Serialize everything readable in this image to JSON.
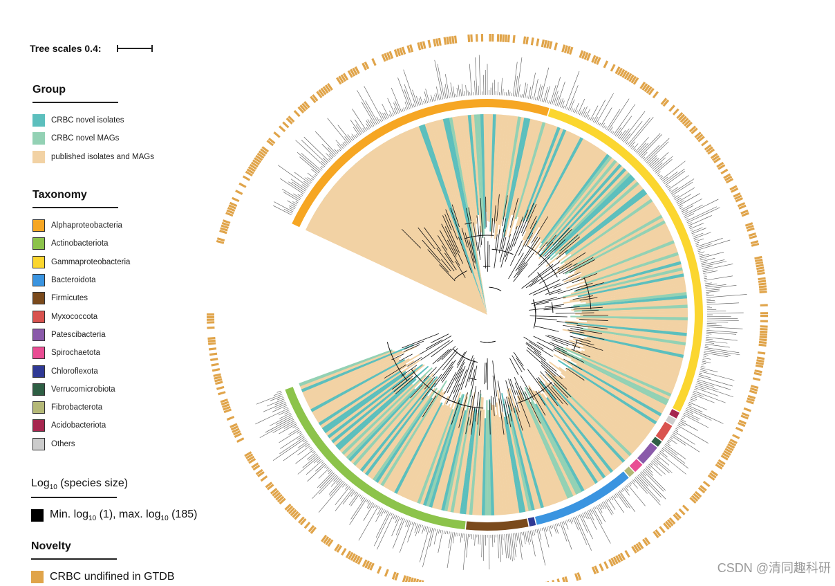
{
  "scale": {
    "label": "Tree scales 0.4:"
  },
  "group": {
    "title": "Group",
    "items": [
      {
        "label": "CRBC novel isolates",
        "color": "#5cbfbd"
      },
      {
        "label": "CRBC novel MAGs",
        "color": "#93d1b4"
      },
      {
        "label": "published isolates and MAGs",
        "color": "#f2d2a4"
      }
    ]
  },
  "taxonomy": {
    "title": "Taxonomy",
    "items": [
      {
        "label": "Alphaproteobacteria",
        "color": "#f6a623"
      },
      {
        "label": "Actinobacteriota",
        "color": "#8cc34b"
      },
      {
        "label": "Gammaproteobacteria",
        "color": "#fbd62f"
      },
      {
        "label": "Bacteroidota",
        "color": "#3a94e0"
      },
      {
        "label": "Firmicutes",
        "color": "#7a4a1c"
      },
      {
        "label": "Myxococcota",
        "color": "#d9534f"
      },
      {
        "label": "Patescibacteria",
        "color": "#8a5aaa"
      },
      {
        "label": "Spirochaetota",
        "color": "#e94d93"
      },
      {
        "label": "Chloroflexota",
        "color": "#2f3994"
      },
      {
        "label": "Verrucomicrobiota",
        "color": "#2e5f44"
      },
      {
        "label": "Fibrobacterota",
        "color": "#b4b877"
      },
      {
        "label": "Acidobacteriota",
        "color": "#a6264f"
      },
      {
        "label": "Others",
        "color": "#cccccc"
      }
    ]
  },
  "species_size": {
    "title_pre": "Log",
    "title_sub": "10",
    "title_post": " (species size)",
    "item": {
      "p1": "Min. log",
      "s1": "10",
      "p2": " (1), max. log",
      "s2": "10",
      "p3": " (185)",
      "color": "#000000"
    }
  },
  "novelty": {
    "title": "Novelty",
    "item": {
      "label": "CRBC undifined in GTDB",
      "color": "#e0a44a"
    }
  },
  "watermark": "CSDN @清同趣科研"
}
